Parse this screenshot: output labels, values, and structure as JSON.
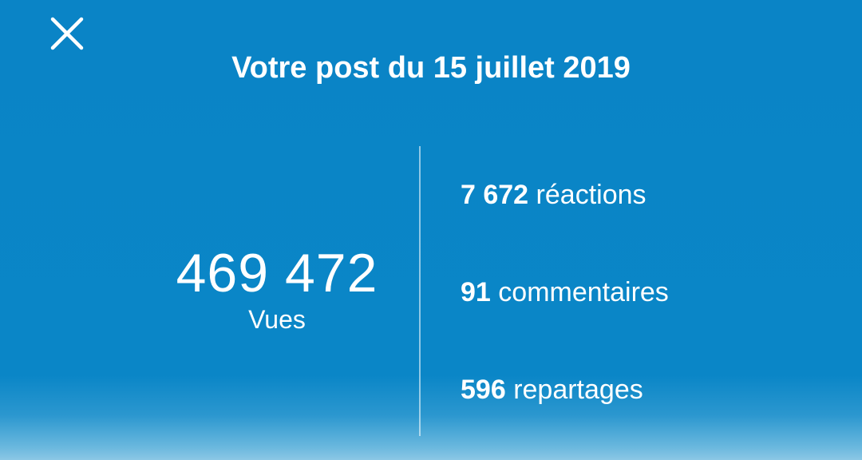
{
  "header": {
    "close_icon": "close-icon",
    "title": "Votre post du 15 juillet 2019"
  },
  "views": {
    "count": "469 472",
    "label": "Vues"
  },
  "stats": [
    {
      "count": "7 672",
      "label": "réactions"
    },
    {
      "count": "91",
      "label": "commentaires"
    },
    {
      "count": "596",
      "label": "repartages"
    }
  ],
  "colors": {
    "background": "#0a84c6",
    "text": "#ffffff"
  }
}
